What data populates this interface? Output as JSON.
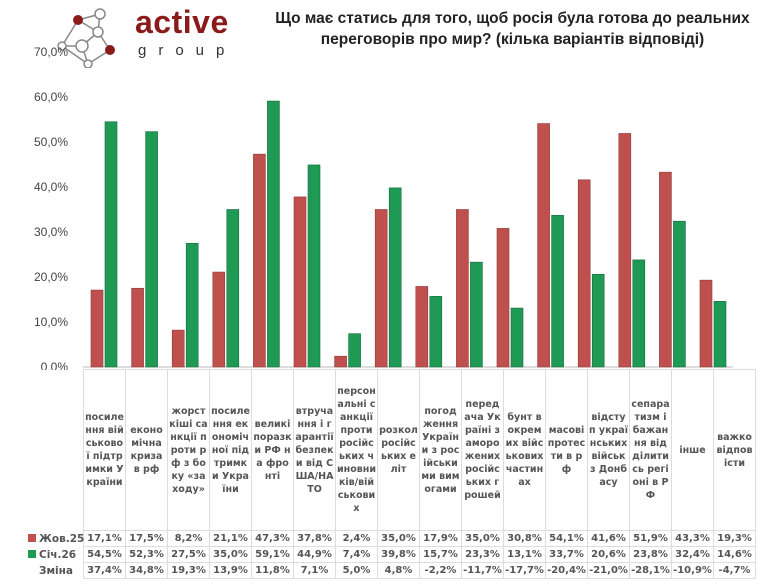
{
  "logo": {
    "brand": "active",
    "sub": "group"
  },
  "chart_data": {
    "type": "bar",
    "title": "Що має статись для того, щоб росія була готова до реальних переговорів про мир? (кілька варіантів відповіді)",
    "ylim": [
      0,
      70
    ],
    "yticks": [
      "0,0%",
      "10,0%",
      "20,0%",
      "30,0%",
      "40,0%",
      "50,0%",
      "60,0%",
      "70,0%"
    ],
    "grid": false,
    "categories": [
      "посилення військової підтримки України",
      "економічна криза в рф",
      "жорсткіші санкції проти рф з боку «заходу»",
      "посилення економічної підтримки України",
      "великі поразки РФ на фронті",
      "втручання і гарантії безпеки від США/НАТО",
      "персональні санкції проти російських чиновників/військових",
      "розкол російських еліт",
      "погодження України з російськими вимогами",
      "передача Україні заморожених російських грошей",
      "бунт в окремих військових частинах",
      "масові протести в рф",
      "відступ українських військ з Донбасу",
      "сепаратизм і бажання відділитись регіоні в РФ",
      "інше",
      "важко відповісти"
    ],
    "series": [
      {
        "name": "Жов.25",
        "color": "#c0504d",
        "values": [
          17.1,
          17.5,
          8.2,
          21.1,
          47.3,
          37.8,
          2.4,
          35.0,
          17.9,
          35.0,
          30.8,
          54.1,
          41.6,
          51.9,
          43.3,
          19.3
        ],
        "labels": [
          "17,1%",
          "17,5%",
          "8,2%",
          "21,1%",
          "47,3%",
          "37,8%",
          "2,4%",
          "35,0%",
          "17,9%",
          "35,0%",
          "30,8%",
          "54,1%",
          "41,6%",
          "51,9%",
          "43,3%",
          "19,3%"
        ]
      },
      {
        "name": "Січ.26",
        "color": "#1e9a55",
        "values": [
          54.5,
          52.3,
          27.5,
          35.0,
          59.1,
          44.9,
          7.4,
          39.8,
          15.7,
          23.3,
          13.1,
          33.7,
          20.6,
          23.8,
          32.4,
          14.6
        ],
        "labels": [
          "54,5%",
          "52,3%",
          "27,5%",
          "35,0%",
          "59,1%",
          "44,9%",
          "7,4%",
          "39,8%",
          "15,7%",
          "23,3%",
          "13,1%",
          "33,7%",
          "20,6%",
          "23,8%",
          "32,4%",
          "14,6%"
        ]
      }
    ],
    "change": {
      "name": "Зміна",
      "labels": [
        "37,4%",
        "34,8%",
        "19,3%",
        "13,9%",
        "11,8%",
        "7,1%",
        "5,0%",
        "4,8%",
        "-2,2%",
        "-11,7%",
        "-17,7%",
        "-20,4%",
        "-21,0%",
        "-28,1%",
        "-10,9%",
        "-4,7%"
      ]
    }
  }
}
